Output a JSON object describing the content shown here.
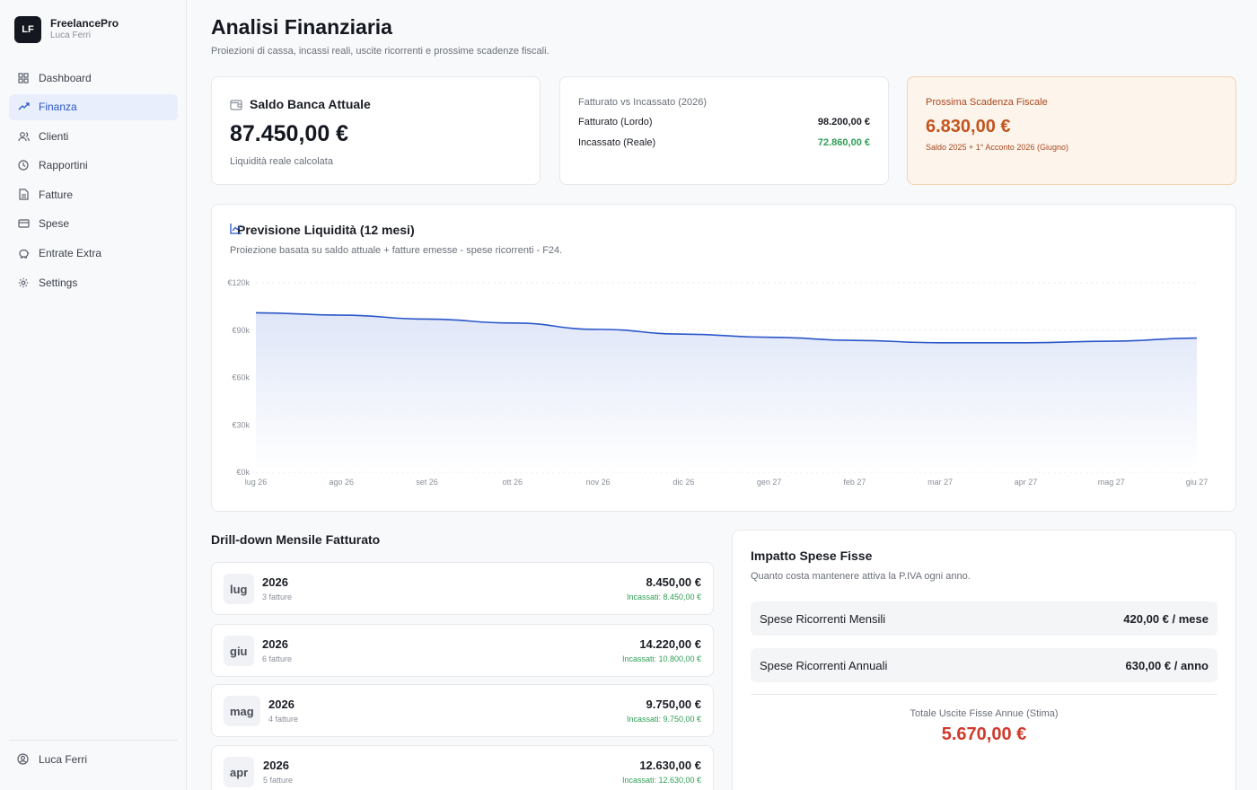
{
  "brand": {
    "logo": "LF",
    "name": "FreelancePro",
    "user": "Luca Ferri"
  },
  "nav": [
    {
      "label": "Dashboard",
      "icon": "grid-icon",
      "active": false
    },
    {
      "label": "Finanza",
      "icon": "trend-icon",
      "active": true
    },
    {
      "label": "Clienti",
      "icon": "users-icon",
      "active": false
    },
    {
      "label": "Rapportini",
      "icon": "clock-icon",
      "active": false
    },
    {
      "label": "Fatture",
      "icon": "file-icon",
      "active": false
    },
    {
      "label": "Spese",
      "icon": "card-icon",
      "active": false
    },
    {
      "label": "Entrate Extra",
      "icon": "piggy-icon",
      "active": false
    },
    {
      "label": "Settings",
      "icon": "gear-icon",
      "active": false
    }
  ],
  "footer": {
    "user": "Luca Ferri"
  },
  "page": {
    "title": "Analisi Finanziaria",
    "subtitle": "Proiezioni di cassa, incassi reali, uscite ricorrenti e prossime scadenze fiscali."
  },
  "saldo": {
    "title": "Saldo Banca Attuale",
    "amount": "87.450,00 €",
    "note": "Liquidità reale calcolata"
  },
  "fatturato": {
    "title": "Fatturato vs Incassato (2026)",
    "rows": [
      {
        "label": "Fatturato (Lordo)",
        "value": "98.200,00 €",
        "color": "#1a1d24"
      },
      {
        "label": "Incassato (Reale)",
        "value": "72.860,00 €",
        "color": "#2f9e55"
      }
    ]
  },
  "scadenza": {
    "title": "Prossima Scadenza Fiscale",
    "amount": "6.830,00 €",
    "note": "Saldo 2025 + 1° Acconto 2026 (Giugno)"
  },
  "forecast": {
    "title": "Previsione Liquidità (12 mesi)",
    "subtitle": "Proiezione basata su saldo attuale + fatture emesse - spese ricorrenti - F24."
  },
  "chart_data": {
    "type": "area",
    "title": "Previsione Liquidità (12 mesi)",
    "x": [
      "lug 26",
      "ago 26",
      "set 26",
      "ott 26",
      "nov 26",
      "dic 26",
      "gen 27",
      "feb 27",
      "mar 27",
      "apr 27",
      "mag 27",
      "giu 27"
    ],
    "values": [
      101000,
      99500,
      97000,
      94500,
      90500,
      87500,
      85500,
      83500,
      82000,
      82000,
      83000,
      85000
    ],
    "y_ticks": [
      {
        "value": 0,
        "label": "€0k"
      },
      {
        "value": 30000,
        "label": "€30k"
      },
      {
        "value": 60000,
        "label": "€60k"
      },
      {
        "value": 90000,
        "label": "€90k"
      },
      {
        "value": 120000,
        "label": "€120k"
      }
    ],
    "ylim": [
      0,
      120000
    ],
    "grid": true,
    "line_color": "#2a56c8"
  },
  "drilldown": {
    "title": "Drill-down Mensile Fatturato",
    "months": [
      {
        "month": "lug",
        "year": "2026",
        "count": "3 fatture",
        "total": "8.450,00 €",
        "incassati": "Incassati: 8.450,00 €"
      },
      {
        "month": "giu",
        "year": "2026",
        "count": "6 fatture",
        "total": "14.220,00 €",
        "incassati": "Incassati: 10.800,00 €"
      },
      {
        "month": "mag",
        "year": "2026",
        "count": "4 fatture",
        "total": "9.750,00 €",
        "incassati": "Incassati: 9.750,00 €"
      },
      {
        "month": "apr",
        "year": "2026",
        "count": "5 fatture",
        "total": "12.630,00 €",
        "incassati": "Incassati: 12.630,00 €"
      }
    ]
  },
  "fixed": {
    "title": "Impatto Spese Fisse",
    "subtitle": "Quanto costa mantenere attiva la P.IVA ogni anno.",
    "rows": [
      {
        "label": "Spese Ricorrenti Mensili",
        "value": "420,00 € / mese"
      },
      {
        "label": "Spese Ricorrenti Annuali",
        "value": "630,00 € / anno"
      }
    ],
    "total_label": "Totale Uscite Fisse Annue (Stima)",
    "total_value": "5.670,00 €"
  }
}
